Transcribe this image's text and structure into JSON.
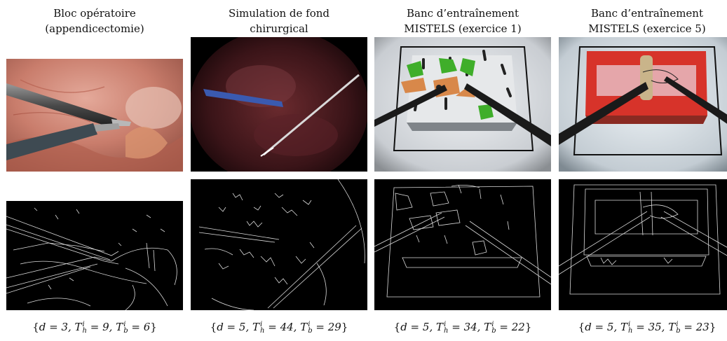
{
  "columns": [
    {
      "title_line1": "Bloc opératoire",
      "title_line2": "(appendicectomie)",
      "params": {
        "d": "3",
        "th": "9",
        "tb": "6"
      },
      "photo_icon": "surgical-scene",
      "edge_icon": "edge-map"
    },
    {
      "title_line1": "Simulation de fond",
      "title_line2": "chirurgical",
      "params": {
        "d": "5",
        "th": "44",
        "tb": "29"
      },
      "photo_icon": "simulation-scene",
      "edge_icon": "edge-map"
    },
    {
      "title_line1": "Banc d’entraînement",
      "title_line2": "MISTELS (exercice 1)",
      "params": {
        "d": "5",
        "th": "34",
        "tb": "22"
      },
      "photo_icon": "peg-transfer-scene",
      "edge_icon": "edge-map"
    },
    {
      "title_line1": "Banc d’entraînement",
      "title_line2": "MISTELS (exercice 5)",
      "params": {
        "d": "5",
        "th": "35",
        "tb": "23"
      },
      "photo_icon": "suturing-scene",
      "edge_icon": "edge-map"
    }
  ],
  "colors": {
    "edge_background": "#000000",
    "edge_line": "#dcdcdc"
  }
}
